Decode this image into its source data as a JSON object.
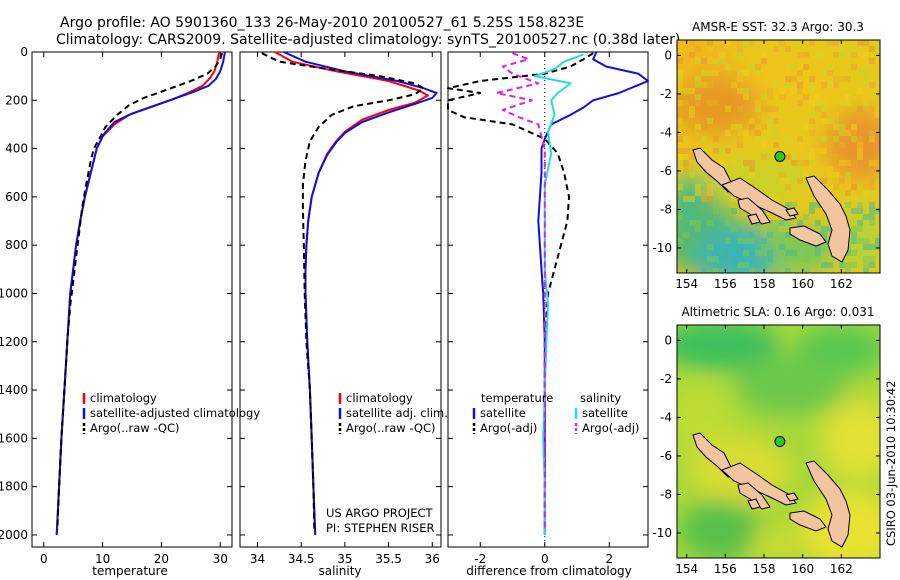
{
  "header": {
    "line1": "Argo profile: AO 5901360_133 26-May-2010 20100527_61 5.25S 158.823E",
    "line2": "Climatology: CARS2009. Satellite-adjusted climatology: synTS_20100527.nc (0.38d later)"
  },
  "colors": {
    "climatology": "#ff0000",
    "satellite": "#1010e0",
    "argo": "#000000",
    "salinity_satellite": "#22dddd",
    "salinity_argo": "#e020e0"
  },
  "chart_data": [
    {
      "type": "line",
      "id": "temperature",
      "xlabel": "temperature",
      "ylabel": "",
      "xlim": [
        -2,
        32
      ],
      "ylim": [
        2050,
        0
      ],
      "xticks": [
        0,
        10,
        20,
        30
      ],
      "yticks": [
        0,
        200,
        400,
        600,
        800,
        1000,
        1200,
        1400,
        1600,
        1800,
        2000
      ],
      "legend": [
        "climatology",
        "satellite-adjusted climatology",
        "Argo(..raw -QC)"
      ],
      "legend_position": "lower-middle",
      "series": [
        {
          "name": "climatology",
          "color": "#ff0000",
          "dash": "",
          "points": [
            [
              29.8,
              0
            ],
            [
              29.5,
              40
            ],
            [
              29.0,
              80
            ],
            [
              28.2,
              110
            ],
            [
              27.0,
              140
            ],
            [
              24.5,
              170
            ],
            [
              21.5,
              200
            ],
            [
              18.0,
              230
            ],
            [
              14.5,
              260
            ],
            [
              12.0,
              300
            ],
            [
              10.0,
              350
            ],
            [
              9.0,
              400
            ],
            [
              8.0,
              500
            ],
            [
              7.0,
              600
            ],
            [
              6.2,
              700
            ],
            [
              5.5,
              800
            ],
            [
              5.0,
              900
            ],
            [
              4.5,
              1000
            ],
            [
              4.0,
              1200
            ],
            [
              3.5,
              1400
            ],
            [
              3.0,
              1600
            ],
            [
              2.6,
              1800
            ],
            [
              2.2,
              2000
            ]
          ]
        },
        {
          "name": "satellite-adjusted climatology",
          "color": "#1010e0",
          "dash": "",
          "points": [
            [
              30.8,
              0
            ],
            [
              30.5,
              40
            ],
            [
              30.0,
              80
            ],
            [
              29.3,
              110
            ],
            [
              28.0,
              140
            ],
            [
              25.5,
              165
            ],
            [
              22.0,
              195
            ],
            [
              18.5,
              225
            ],
            [
              15.0,
              255
            ],
            [
              12.0,
              290
            ],
            [
              10.2,
              340
            ],
            [
              9.0,
              400
            ],
            [
              8.0,
              500
            ],
            [
              7.0,
              600
            ],
            [
              6.2,
              700
            ],
            [
              5.5,
              800
            ],
            [
              5.0,
              900
            ],
            [
              4.5,
              1000
            ],
            [
              4.0,
              1200
            ],
            [
              3.5,
              1400
            ],
            [
              3.0,
              1600
            ],
            [
              2.6,
              1800
            ],
            [
              2.2,
              2000
            ]
          ]
        },
        {
          "name": "Argo(..raw -QC)",
          "color": "#000000",
          "dash": "6,4",
          "points": [
            [
              30.3,
              5
            ],
            [
              30.0,
              30
            ],
            [
              29.2,
              60
            ],
            [
              27.8,
              90
            ],
            [
              25.0,
              120
            ],
            [
              20.5,
              160
            ],
            [
              17.0,
              190
            ],
            [
              14.5,
              220
            ],
            [
              12.5,
              260
            ],
            [
              10.5,
              310
            ],
            [
              9.2,
              370
            ],
            [
              8.5,
              400
            ],
            [
              8.0,
              450
            ],
            [
              7.2,
              550
            ],
            [
              6.5,
              650
            ],
            [
              6.0,
              750
            ],
            [
              5.5,
              850
            ],
            [
              5.0,
              950
            ],
            [
              4.5,
              1050
            ],
            [
              4.0,
              1200
            ],
            [
              3.5,
              1400
            ],
            [
              3.0,
              1600
            ],
            [
              2.6,
              1800
            ],
            [
              2.3,
              1980
            ]
          ]
        }
      ]
    },
    {
      "type": "line",
      "id": "salinity",
      "xlabel": "salinity",
      "ylabel": "",
      "xlim": [
        33.8,
        36.1
      ],
      "ylim": [
        2050,
        0
      ],
      "xticks": [
        34,
        34.5,
        35,
        35.5,
        36
      ],
      "legend": [
        "climatology",
        "satellite adj. clim.",
        "Argo(..raw -QC)"
      ],
      "legend_position": "lower-right",
      "annotation": [
        "US ARGO PROJECT",
        "PI: STEPHEN RISER"
      ],
      "series": [
        {
          "name": "climatology",
          "color": "#ff0000",
          "dash": "",
          "points": [
            [
              34.2,
              0
            ],
            [
              34.4,
              40
            ],
            [
              34.9,
              80
            ],
            [
              35.5,
              120
            ],
            [
              35.85,
              160
            ],
            [
              35.95,
              180
            ],
            [
              35.8,
              210
            ],
            [
              35.5,
              240
            ],
            [
              35.2,
              280
            ],
            [
              35.0,
              330
            ],
            [
              34.9,
              370
            ],
            [
              34.8,
              420
            ],
            [
              34.7,
              500
            ],
            [
              34.62,
              600
            ],
            [
              34.58,
              700
            ],
            [
              34.56,
              800
            ],
            [
              34.55,
              900
            ],
            [
              34.55,
              1000
            ],
            [
              34.57,
              1200
            ],
            [
              34.6,
              1400
            ],
            [
              34.62,
              1600
            ],
            [
              34.64,
              1800
            ],
            [
              34.66,
              2000
            ]
          ]
        },
        {
          "name": "satellite adj. clim.",
          "color": "#1010e0",
          "dash": "",
          "points": [
            [
              34.3,
              0
            ],
            [
              34.55,
              40
            ],
            [
              35.0,
              80
            ],
            [
              35.6,
              120
            ],
            [
              35.9,
              150
            ],
            [
              36.05,
              170
            ],
            [
              36.0,
              190
            ],
            [
              35.8,
              215
            ],
            [
              35.5,
              250
            ],
            [
              35.2,
              290
            ],
            [
              35.0,
              335
            ],
            [
              34.9,
              375
            ],
            [
              34.8,
              425
            ],
            [
              34.7,
              500
            ],
            [
              34.62,
              600
            ],
            [
              34.58,
              700
            ],
            [
              34.56,
              800
            ],
            [
              34.55,
              900
            ],
            [
              34.55,
              1000
            ],
            [
              34.57,
              1200
            ],
            [
              34.6,
              1400
            ],
            [
              34.62,
              1600
            ],
            [
              34.64,
              1800
            ],
            [
              34.66,
              2000
            ]
          ]
        },
        {
          "name": "Argo(..raw -QC)",
          "color": "#000000",
          "dash": "6,4",
          "points": [
            [
              34.05,
              5
            ],
            [
              34.25,
              40
            ],
            [
              34.8,
              70
            ],
            [
              35.4,
              100
            ],
            [
              35.8,
              130
            ],
            [
              35.9,
              150
            ],
            [
              35.8,
              175
            ],
            [
              35.5,
              200
            ],
            [
              35.1,
              225
            ],
            [
              34.85,
              260
            ],
            [
              34.7,
              310
            ],
            [
              34.6,
              370
            ],
            [
              34.55,
              450
            ],
            [
              34.52,
              550
            ],
            [
              34.52,
              650
            ],
            [
              34.53,
              800
            ],
            [
              34.54,
              1000
            ],
            [
              34.56,
              1200
            ],
            [
              34.6,
              1400
            ],
            [
              34.62,
              1600
            ],
            [
              34.64,
              1800
            ],
            [
              34.65,
              1980
            ]
          ]
        }
      ]
    },
    {
      "type": "line",
      "id": "difference",
      "xlabel": "difference from climatology",
      "ylabel": "",
      "xlim": [
        -3,
        3.2
      ],
      "ylim": [
        2050,
        0
      ],
      "xticks": [
        -2,
        0,
        2
      ],
      "legend_temperature_title": "temperature",
      "legend_salinity_title": "salinity",
      "legend_temperature": [
        "satellite",
        "Argo(-adj)"
      ],
      "legend_salinity": [
        "satellite",
        "Argo(-adj)"
      ],
      "series": [
        {
          "name": "temperature satellite",
          "color": "#1010e0",
          "dash": "",
          "points": [
            [
              1.6,
              0
            ],
            [
              1.5,
              30
            ],
            [
              1.9,
              60
            ],
            [
              2.9,
              90
            ],
            [
              3.2,
              120
            ],
            [
              2.3,
              170
            ],
            [
              1.5,
              200
            ],
            [
              1.2,
              230
            ],
            [
              0.8,
              260
            ],
            [
              0.2,
              300
            ],
            [
              0.0,
              360
            ],
            [
              -0.1,
              400
            ],
            [
              -0.1,
              500
            ],
            [
              -0.15,
              600
            ],
            [
              -0.2,
              700
            ],
            [
              -0.15,
              800
            ],
            [
              -0.1,
              900
            ],
            [
              -0.05,
              1000
            ],
            [
              0.0,
              1200
            ],
            [
              0.0,
              1400
            ],
            [
              0.0,
              1600
            ],
            [
              0.0,
              1800
            ],
            [
              0.0,
              2000
            ]
          ]
        },
        {
          "name": "temperature Argo(-adj)",
          "color": "#000000",
          "dash": "6,4",
          "points": [
            [
              1.5,
              5
            ],
            [
              1.2,
              30
            ],
            [
              0.8,
              60
            ],
            [
              0.0,
              90
            ],
            [
              -2.0,
              120
            ],
            [
              -3.0,
              150
            ],
            [
              -2.0,
              170
            ],
            [
              -3.0,
              200
            ],
            [
              -3.0,
              240
            ],
            [
              -2.5,
              270
            ],
            [
              -1.0,
              300
            ],
            [
              0.0,
              360
            ],
            [
              0.4,
              420
            ],
            [
              0.6,
              500
            ],
            [
              0.75,
              600
            ],
            [
              0.7,
              700
            ],
            [
              0.5,
              800
            ],
            [
              0.3,
              900
            ],
            [
              0.1,
              1000
            ],
            [
              0.0,
              1200
            ],
            [
              0.0,
              1400
            ],
            [
              0.0,
              1600
            ],
            [
              0.0,
              1800
            ],
            [
              0.0,
              1980
            ]
          ]
        },
        {
          "name": "salinity satellite",
          "color": "#22dddd",
          "dash": "",
          "points": [
            [
              1.2,
              10
            ],
            [
              0.6,
              40
            ],
            [
              0.3,
              70
            ],
            [
              -0.3,
              100
            ],
            [
              0.8,
              130
            ],
            [
              0.4,
              170
            ],
            [
              0.2,
              200
            ],
            [
              0.3,
              260
            ],
            [
              0.1,
              330
            ],
            [
              0.2,
              420
            ],
            [
              0.0,
              550
            ],
            [
              0.0,
              700
            ],
            [
              0.0,
              900
            ],
            [
              0.1,
              1050
            ],
            [
              0.05,
              1200
            ],
            [
              0.0,
              1400
            ],
            [
              -0.05,
              1600
            ],
            [
              0.0,
              1800
            ],
            [
              0.0,
              2000
            ]
          ]
        },
        {
          "name": "salinity Argo(-adj)",
          "color": "#e020e0",
          "dash": "6,4",
          "points": [
            [
              -1.0,
              5
            ],
            [
              -0.5,
              30
            ],
            [
              -1.3,
              60
            ],
            [
              -1.0,
              90
            ],
            [
              -0.2,
              130
            ],
            [
              -1.5,
              170
            ],
            [
              -0.4,
              200
            ],
            [
              -1.3,
              240
            ],
            [
              -0.8,
              270
            ],
            [
              -0.2,
              300
            ],
            [
              0.0,
              400
            ],
            [
              0.0,
              500
            ],
            [
              0.0,
              700
            ],
            [
              0.0,
              900
            ],
            [
              0.0,
              1200
            ],
            [
              0.0,
              1500
            ],
            [
              0.0,
              1800
            ],
            [
              0.0,
              1980
            ]
          ]
        }
      ]
    }
  ],
  "maps": [
    {
      "id": "sst-map",
      "title": "AMSR-E SST: 32.3 Argo: 30.3",
      "xlim": [
        153.5,
        164
      ],
      "ylim": [
        -11.3,
        0.8
      ],
      "xticks": [
        154,
        156,
        158,
        160,
        162
      ],
      "yticks": [
        0,
        -2,
        -4,
        -6,
        -8,
        -10
      ],
      "argo_marker": {
        "lon": 158.823,
        "lat": -5.25,
        "color": "#22cc22"
      }
    },
    {
      "id": "sla-map",
      "title": "Altimetric SLA: 0.16 Argo: 0.031",
      "xlim": [
        153.5,
        164
      ],
      "ylim": [
        -11.3,
        0.8
      ],
      "xticks": [
        154,
        156,
        158,
        160,
        162
      ],
      "yticks": [
        0,
        -2,
        -4,
        -6,
        -8,
        -10
      ],
      "argo_marker": {
        "lon": 158.823,
        "lat": -5.25,
        "color": "#22cc22"
      }
    }
  ],
  "credit": "CSIRO 03-Jun-2010 10:30:42"
}
